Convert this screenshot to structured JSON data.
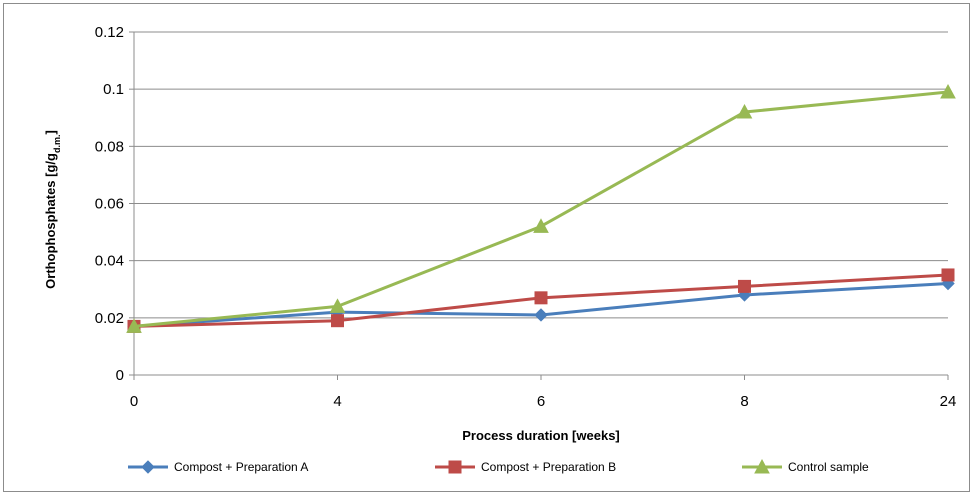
{
  "chart_data": {
    "type": "line",
    "title": "",
    "xlabel": "Process duration [weeks]",
    "ylabel": {
      "main": "Orthophosphates [g/g",
      "sub": "d.m.",
      "close": "]"
    },
    "categories": [
      "0",
      "4",
      "6",
      "8",
      "24"
    ],
    "ylim": [
      0,
      0.12
    ],
    "yticks": [
      "0",
      "0.02",
      "0.04",
      "0.06",
      "0.08",
      "0.1",
      "0.12"
    ],
    "grid": true,
    "legend_position": "bottom",
    "series": [
      {
        "name": "Compost + Preparation A",
        "values": [
          0.017,
          0.022,
          0.021,
          0.028,
          0.032
        ],
        "color": "#4a7ebb",
        "marker": "diamond"
      },
      {
        "name": "Compost + Preparation B",
        "values": [
          0.017,
          0.019,
          0.027,
          0.031,
          0.035
        ],
        "color": "#be4b48",
        "marker": "square"
      },
      {
        "name": "Control sample",
        "values": [
          0.017,
          0.024,
          0.052,
          0.092,
          0.099
        ],
        "color": "#98b954",
        "marker": "triangle"
      }
    ]
  }
}
